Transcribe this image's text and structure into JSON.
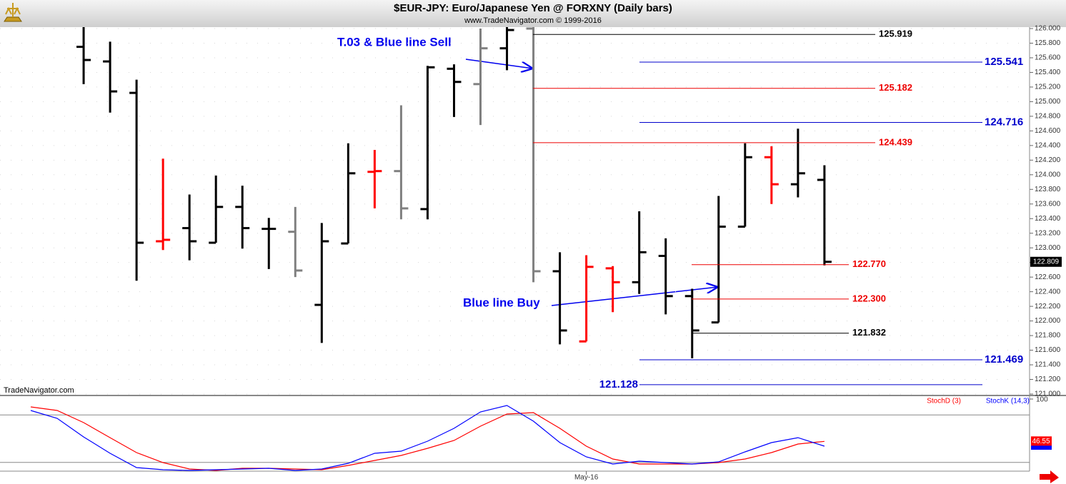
{
  "chart_data": [
    {
      "type": "ohlc",
      "title": "$EUR-JPY:  Euro/Japanese Yen @ FORXNY  (Daily bars)",
      "subtitle": "www.TradeNavigator.com © 1999-2016",
      "watermark": "TradeNavigator.com",
      "open": [
        null,
        null,
        125.75,
        125.55,
        125.12,
        123.09,
        123.27,
        123.07,
        123.56,
        123.26,
        123.22,
        122.22,
        123.06,
        124.04,
        124.05,
        123.53,
        125.45,
        125.24,
        125.73,
        126.0,
        122.68,
        121.72,
        122.72,
        122.53,
        122.89,
        122.34,
        121.98,
        123.29,
        124.24,
        123.87,
        123.93
      ],
      "high": [
        null,
        null,
        126.05,
        125.82,
        125.3,
        124.22,
        123.73,
        123.99,
        123.85,
        123.41,
        123.56,
        123.34,
        124.43,
        124.34,
        124.95,
        125.49,
        125.51,
        126.0,
        126.05,
        126.05,
        122.94,
        122.9,
        122.75,
        123.5,
        123.13,
        122.44,
        123.71,
        124.43,
        124.39,
        124.63,
        124.13
      ],
      "low": [
        null,
        null,
        125.24,
        124.85,
        122.55,
        122.97,
        122.83,
        123.07,
        122.99,
        122.71,
        122.6,
        121.7,
        123.06,
        123.54,
        123.39,
        123.39,
        124.79,
        124.68,
        125.43,
        122.53,
        121.68,
        121.72,
        122.12,
        122.37,
        122.09,
        121.49,
        121.98,
        123.29,
        123.6,
        123.69,
        122.76
      ],
      "close": [
        null,
        null,
        125.57,
        125.14,
        123.07,
        123.11,
        123.09,
        123.56,
        123.27,
        123.26,
        122.69,
        123.09,
        124.02,
        124.05,
        123.54,
        125.47,
        125.27,
        125.73,
        125.98,
        122.68,
        121.87,
        122.74,
        122.53,
        122.94,
        122.34,
        121.87,
        123.29,
        124.24,
        123.87,
        124.02,
        122.809
      ],
      "colors": [
        null,
        null,
        "#000000",
        "#000000",
        "#000000",
        "#ff0000",
        "#000000",
        "#000000",
        "#000000",
        "#000000",
        "#808080",
        "#000000",
        "#000000",
        "#ff0000",
        "#808080",
        "#000000",
        "#000000",
        "#808080",
        "#000000",
        "#808080",
        "#000000",
        "#ff0000",
        "#ff0000",
        "#000000",
        "#000000",
        "#000000",
        "#000000",
        "#000000",
        "#ff0000",
        "#000000",
        "#000000"
      ],
      "ylim": [
        121,
        126
      ],
      "yticks": [
        {
          "value": 121.0,
          "label": "121.000"
        },
        {
          "value": 121.2,
          "label": "121.200"
        },
        {
          "value": 121.4,
          "label": "121.400"
        },
        {
          "value": 121.6,
          "label": "121.600"
        },
        {
          "value": 121.8,
          "label": "121.800"
        },
        {
          "value": 122.0,
          "label": "122.000"
        },
        {
          "value": 122.2,
          "label": "122.200"
        },
        {
          "value": 122.4,
          "label": "122.400"
        },
        {
          "value": 122.6,
          "label": "122.600"
        },
        {
          "value": 122.8,
          "label": "122.800"
        },
        {
          "value": 123.0,
          "label": "123.000"
        },
        {
          "value": 123.2,
          "label": "123.200"
        },
        {
          "value": 123.4,
          "label": "123.400"
        },
        {
          "value": 123.6,
          "label": "123.600"
        },
        {
          "value": 123.8,
          "label": "123.800"
        },
        {
          "value": 124.0,
          "label": "124.000"
        },
        {
          "value": 124.2,
          "label": "124.200"
        },
        {
          "value": 124.4,
          "label": "124.400"
        },
        {
          "value": 124.6,
          "label": "124.600"
        },
        {
          "value": 124.8,
          "label": "124.800"
        },
        {
          "value": 125.0,
          "label": "125.000"
        },
        {
          "value": 125.2,
          "label": "125.200"
        },
        {
          "value": 125.4,
          "label": "125.400"
        },
        {
          "value": 125.6,
          "label": "125.600"
        },
        {
          "value": 125.8,
          "label": "125.800"
        },
        {
          "value": 126.0,
          "label": "126.000"
        }
      ],
      "grid": true,
      "levels": [
        {
          "value": 125.919,
          "label": "125.919",
          "color": "#000000"
        },
        {
          "value": 125.541,
          "label": "125.541",
          "color": "#0000cc"
        },
        {
          "value": 125.182,
          "label": "125.182",
          "color": "#ee0000"
        },
        {
          "value": 124.716,
          "label": "124.716",
          "color": "#0000cc"
        },
        {
          "value": 124.439,
          "label": "124.439",
          "color": "#ee0000"
        },
        {
          "value": 122.77,
          "label": "122.770",
          "color": "#ee0000"
        },
        {
          "value": 122.3,
          "label": "122.300",
          "color": "#ee0000"
        },
        {
          "value": 121.832,
          "label": "121.832",
          "color": "#000000"
        },
        {
          "value": 121.469,
          "label": "121.469",
          "color": "#0000cc"
        },
        {
          "value": 121.128,
          "label": "121.128",
          "color": "#0000cc"
        }
      ],
      "annotations": [
        "T.03 & Blue line Sell",
        "Blue line Buy"
      ]
    },
    {
      "type": "line",
      "categories": [
        null,
        null,
        null,
        null,
        null,
        null,
        null,
        null,
        null,
        null,
        null,
        null,
        null,
        null,
        null,
        null,
        null,
        null,
        null,
        null,
        null,
        "May-16",
        null,
        null,
        null,
        null,
        null,
        null,
        null,
        null,
        null
      ],
      "series": [
        {
          "name": "StochD (3)",
          "color": "#ff0000",
          "values": [
            90.1,
            85.6,
            70.3,
            51.3,
            32.4,
            19.8,
            11.7,
            9.9,
            12.6,
            12.6,
            11.7,
            10.8,
            16.2,
            22.5,
            28.8,
            37.8,
            47.7,
            65.8,
            81.1,
            82.9,
            63.1,
            40.5,
            24.3,
            18.0,
            18.0,
            18.0,
            19.8,
            24.3,
            32.4,
            43.2,
            46.55
          ]
        },
        {
          "name": "StochK (14,3)",
          "color": "#0000ff",
          "values": [
            85.6,
            75.7,
            52.2,
            31.5,
            13.5,
            10.8,
            9.9,
            10.8,
            11.7,
            12.6,
            9.9,
            11.7,
            18.9,
            31.5,
            34.2,
            46.8,
            63.1,
            83.8,
            91.9,
            72.1,
            45.0,
            27.0,
            18.0,
            21.6,
            19.8,
            18.0,
            20.7,
            33.3,
            45.0,
            51.3,
            40.5
          ]
        }
      ],
      "ylim": [
        9,
        100
      ],
      "yticks": [
        100
      ],
      "hlines": [
        80,
        20
      ]
    }
  ]
}
